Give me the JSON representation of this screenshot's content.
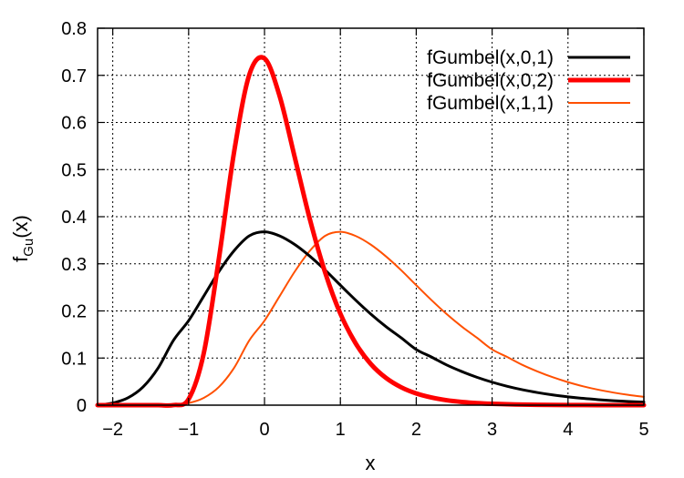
{
  "chart_data": {
    "type": "line",
    "title": "",
    "xlabel": "x",
    "ylabel_main": "f",
    "ylabel_sub": "Gu",
    "ylabel_tail": "(x)",
    "xlim": [
      -2.2,
      5
    ],
    "ylim": [
      0,
      0.8
    ],
    "x_ticks": [
      -2,
      -1,
      0,
      1,
      2,
      3,
      4,
      5
    ],
    "x_tick_labels": [
      "−2",
      "−1",
      "0",
      "1",
      "2",
      "3",
      "4",
      "5"
    ],
    "y_ticks": [
      0,
      0.1,
      0.2,
      0.3,
      0.4,
      0.5,
      0.6,
      0.7,
      0.8
    ],
    "y_tick_labels": [
      "0",
      "0.1",
      "0.2",
      "0.3",
      "0.4",
      "0.5",
      "0.6",
      "0.7",
      "0.8"
    ],
    "grid": true,
    "legend_position": "top-right",
    "x": [
      -2.2,
      -2.0,
      -1.8,
      -1.6,
      -1.4,
      -1.2,
      -1.0,
      -0.8,
      -0.6,
      -0.4,
      -0.2,
      0.0,
      0.2,
      0.4,
      0.6,
      0.8,
      1.0,
      1.2,
      1.4,
      1.6,
      1.8,
      2.0,
      2.2,
      2.4,
      2.6,
      2.8,
      3.0,
      3.2,
      3.4,
      3.6,
      3.8,
      4.0,
      4.2,
      4.4,
      4.6,
      4.8,
      5.0
    ],
    "series": [
      {
        "name": "fGumbel(x,0,1)",
        "color": "#000000",
        "width": 3,
        "values": [
          0.0,
          0.0046,
          0.0155,
          0.0387,
          0.0793,
          0.1376,
          0.1794,
          0.2315,
          0.2838,
          0.328,
          0.3594,
          0.3679,
          0.3592,
          0.3408,
          0.3158,
          0.2866,
          0.2546,
          0.2231,
          0.1935,
          0.1668,
          0.1431,
          0.1182,
          0.1022,
          0.0854,
          0.0714,
          0.0592,
          0.0488,
          0.04,
          0.0327,
          0.0267,
          0.0217,
          0.0177,
          0.0144,
          0.0117,
          0.0095,
          0.0078,
          0.0066
        ]
      },
      {
        "name": "fGumbel(x,0,2)",
        "color": "#ff0000",
        "width": 5,
        "values": [
          0.0,
          0.0,
          0.0,
          0.0,
          0.0,
          0.0001,
          0.0128,
          0.1106,
          0.3122,
          0.5381,
          0.7015,
          0.7358,
          0.6556,
          0.5251,
          0.3932,
          0.2813,
          0.1941,
          0.1316,
          0.0876,
          0.0579,
          0.038,
          0.0248,
          0.0162,
          0.0105,
          0.0068,
          0.0044,
          0.0029,
          0.0019,
          0.0012,
          0.0008,
          0.0005,
          0.0003,
          0.0002,
          0.0001,
          0.0001,
          0.0001,
          0.0
        ]
      },
      {
        "name": "fGumbel(x,1,1)",
        "color": "#ff5000",
        "width": 2,
        "values": [
          0.0,
          0.0,
          0.0,
          0.0,
          0.0002,
          0.0017,
          0.0046,
          0.0155,
          0.0387,
          0.0793,
          0.1376,
          0.1794,
          0.2315,
          0.2838,
          0.328,
          0.3594,
          0.3679,
          0.3592,
          0.3408,
          0.3158,
          0.2866,
          0.2546,
          0.2231,
          0.1935,
          0.1668,
          0.1431,
          0.1182,
          0.1022,
          0.0854,
          0.0714,
          0.0592,
          0.0488,
          0.04,
          0.0327,
          0.0267,
          0.0217,
          0.0177
        ]
      }
    ]
  }
}
